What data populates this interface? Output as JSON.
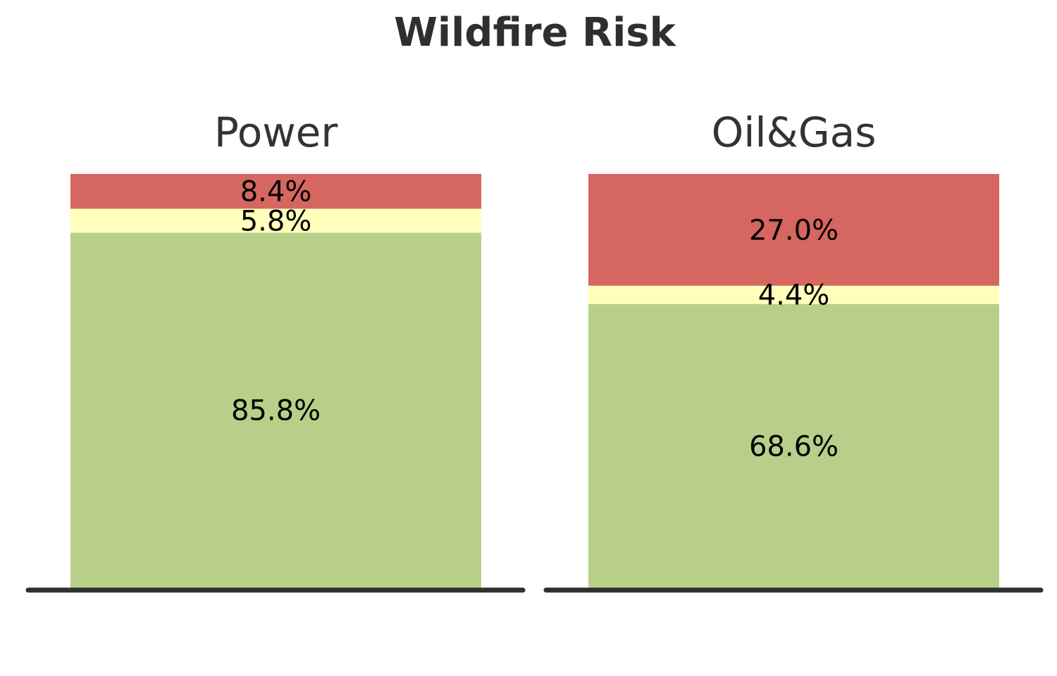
{
  "chart_data": {
    "type": "bar",
    "stacked": true,
    "normalized": true,
    "title": "Wildfire Risk",
    "panels": [
      {
        "name": "Power",
        "segments": [
          {
            "value": 85.8,
            "label": "85.8%",
            "color": "#b8cf8a"
          },
          {
            "value": 5.8,
            "label": "5.8%",
            "color": "#ffffbb"
          },
          {
            "value": 8.4,
            "label": "8.4%",
            "color": "#d66660"
          }
        ]
      },
      {
        "name": "Oil&Gas",
        "segments": [
          {
            "value": 68.6,
            "label": "68.6%",
            "color": "#b8cf8a"
          },
          {
            "value": 4.4,
            "label": "4.4%",
            "color": "#ffffbb"
          },
          {
            "value": 27.0,
            "label": "27.0%",
            "color": "#d66660"
          }
        ]
      }
    ],
    "ylim": [
      0,
      100
    ],
    "grid": false,
    "legend": "none",
    "baseline_color": "#2f2f2f"
  }
}
